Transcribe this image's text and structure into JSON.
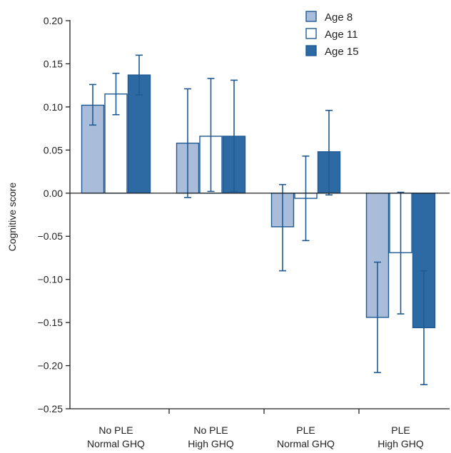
{
  "chart_data": {
    "type": "bar",
    "ylabel": "Cognitive score",
    "ylim": [
      -0.25,
      0.2
    ],
    "yticks": [
      0.2,
      0.15,
      0.1,
      0.05,
      0.0,
      -0.05,
      -0.1,
      -0.15,
      -0.2,
      -0.25
    ],
    "ytick_labels": [
      "0.20",
      "0.15",
      "0.10",
      "0.05",
      "0.00",
      "−0.05",
      "−0.10",
      "−0.15",
      "−0.20",
      "−0.25"
    ],
    "categories": [
      {
        "line1": "No PLE",
        "line2": "Normal GHQ"
      },
      {
        "line1": "No PLE",
        "line2": "High GHQ"
      },
      {
        "line1": "PLE",
        "line2": "Normal GHQ"
      },
      {
        "line1": "PLE",
        "line2": "High GHQ"
      }
    ],
    "series": [
      {
        "name": "Age 8",
        "color": "#a9bcda",
        "values": [
          0.102,
          0.058,
          -0.039,
          -0.144
        ],
        "err_low": [
          0.079,
          -0.005,
          -0.09,
          -0.208
        ],
        "err_high": [
          0.126,
          0.121,
          0.01,
          -0.08
        ]
      },
      {
        "name": "Age 11",
        "color": "#ffffff",
        "values": [
          0.115,
          0.066,
          -0.006,
          -0.069
        ],
        "err_low": [
          0.091,
          0.002,
          -0.055,
          -0.14
        ],
        "err_high": [
          0.139,
          0.133,
          0.043,
          0.001
        ]
      },
      {
        "name": "Age 15",
        "color": "#2d6aa3",
        "values": [
          0.137,
          0.066,
          0.048,
          -0.156
        ],
        "err_low": [
          0.114,
          0.002,
          -0.002,
          -0.222
        ],
        "err_high": [
          0.16,
          0.131,
          0.096,
          -0.09
        ]
      }
    ],
    "legend_position": "top-right",
    "grid": false,
    "colors": {
      "outline": "#1f5a93",
      "axis": "#222222"
    }
  }
}
